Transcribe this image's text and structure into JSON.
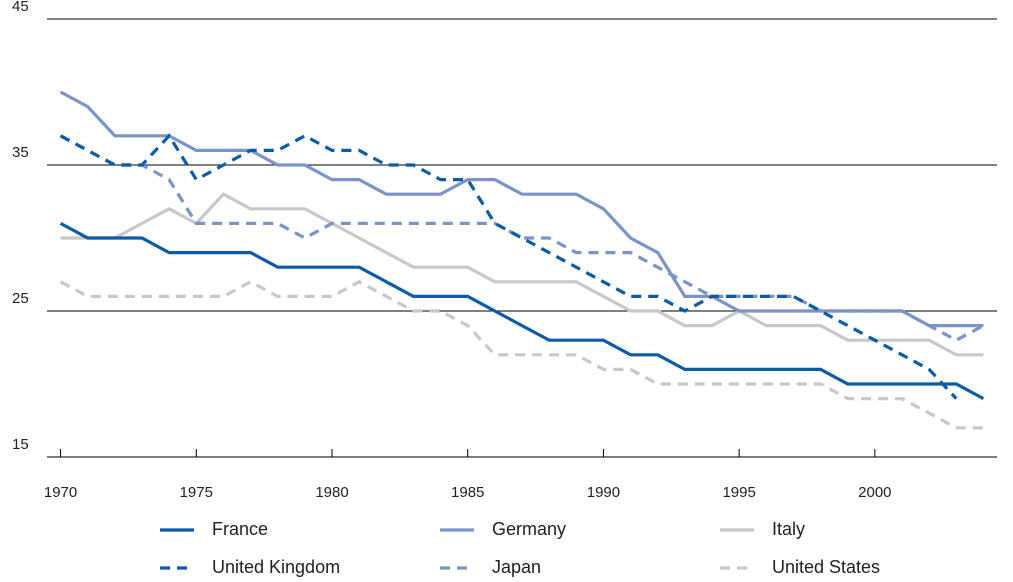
{
  "chart_data": {
    "type": "line",
    "x": [
      1970,
      1971,
      1972,
      1973,
      1974,
      1975,
      1976,
      1977,
      1978,
      1979,
      1980,
      1981,
      1982,
      1983,
      1984,
      1985,
      1986,
      1987,
      1988,
      1989,
      1990,
      1991,
      1992,
      1993,
      1994,
      1995,
      1996,
      1997,
      1998,
      1999,
      2000,
      2001,
      2002,
      2003,
      2004
    ],
    "series": [
      {
        "name": "France",
        "color": "#0a5ba8",
        "dashed": false,
        "values": [
          31,
          30,
          30,
          30,
          29,
          29,
          29,
          29,
          28,
          28,
          28,
          28,
          27,
          26,
          26,
          26,
          25,
          24,
          23,
          23,
          23,
          22,
          22,
          21,
          21,
          21,
          21,
          21,
          21,
          20,
          20,
          20,
          20,
          20,
          19
        ]
      },
      {
        "name": "Germany",
        "color": "#7b93c9",
        "dashed": false,
        "values": [
          40,
          39,
          37,
          37,
          37,
          36,
          36,
          36,
          35,
          35,
          34,
          34,
          33,
          33,
          33,
          34,
          34,
          33,
          33,
          33,
          32,
          30,
          29,
          26,
          26,
          25,
          25,
          25,
          25,
          25,
          25,
          25,
          24,
          24,
          24
        ]
      },
      {
        "name": "Italy",
        "color": "#c8c8c8",
        "dashed": false,
        "values": [
          30,
          30,
          30,
          31,
          32,
          31,
          33,
          32,
          32,
          32,
          31,
          30,
          29,
          28,
          28,
          28,
          27,
          27,
          27,
          27,
          26,
          25,
          25,
          24,
          24,
          25,
          24,
          24,
          24,
          23,
          23,
          23,
          23,
          22,
          22
        ]
      },
      {
        "name": "United Kingdom",
        "color": "#0a5ba8",
        "dashed": true,
        "values": [
          37,
          36,
          35,
          35,
          37,
          34,
          35,
          36,
          36,
          37,
          36,
          36,
          35,
          35,
          34,
          34,
          31,
          30,
          29,
          28,
          27,
          26,
          26,
          25,
          26,
          26,
          26,
          26,
          25,
          24,
          23,
          22,
          21,
          19,
          null
        ]
      },
      {
        "name": "Japan",
        "color": "#7b93c9",
        "dashed": true,
        "values": [
          37,
          36,
          35,
          35,
          34,
          31,
          31,
          31,
          31,
          30,
          31,
          31,
          31,
          31,
          31,
          31,
          31,
          30,
          30,
          29,
          29,
          29,
          28,
          27,
          26,
          26,
          26,
          26,
          25,
          25,
          25,
          25,
          24,
          23,
          24
        ]
      },
      {
        "name": "United States",
        "color": "#c8c8c8",
        "dashed": true,
        "values": [
          27,
          26,
          26,
          26,
          26,
          26,
          26,
          27,
          26,
          26,
          26,
          27,
          26,
          25,
          25,
          24,
          22,
          22,
          22,
          22,
          21,
          21,
          20,
          20,
          20,
          20,
          20,
          20,
          20,
          19,
          19,
          19,
          18,
          17,
          17
        ]
      }
    ],
    "xlim": [
      1969.5,
      2004.5
    ],
    "xticks": [
      1970,
      1975,
      1980,
      1985,
      1990,
      1995,
      2000
    ],
    "ylim": [
      15,
      45
    ],
    "yticks": [
      15,
      25,
      35,
      45
    ],
    "grid": true
  }
}
